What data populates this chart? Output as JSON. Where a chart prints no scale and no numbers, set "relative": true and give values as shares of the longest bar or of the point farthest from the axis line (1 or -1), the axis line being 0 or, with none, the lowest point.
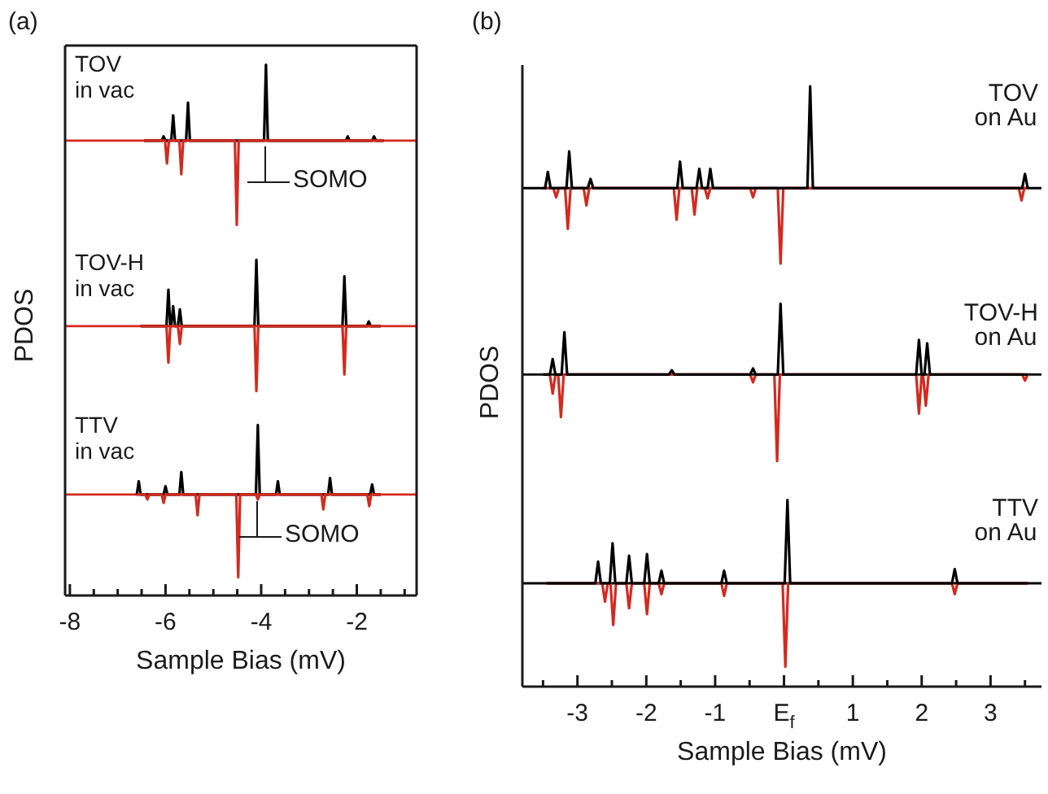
{
  "chart_data": [
    {
      "type": "line",
      "relative": true,
      "title": "(a)",
      "annotations": [
        "TOV\nin vac",
        "SOMO"
      ],
      "ref_lines": [
        {
          "axis": "y",
          "value": 0,
          "color": "#d42a1e"
        }
      ],
      "xlim": [
        -8.1,
        -0.75
      ],
      "tick_labels": false,
      "series": [
        {
          "color": "#000000",
          "x": [
            -6.45,
            -6.08,
            -6.04,
            -6.0,
            -5.88,
            -5.84,
            -5.8,
            -5.57,
            -5.53,
            -5.49,
            -3.94,
            -3.9,
            -3.86,
            -2.23,
            -2.19,
            -2.15,
            -1.68,
            -1.64,
            -1.6,
            -1.44
          ],
          "values": [
            0,
            0,
            0.05,
            0,
            0,
            0.3,
            0,
            0,
            0.45,
            0,
            0,
            0.9,
            0,
            0,
            0.05,
            0,
            0,
            0.05,
            0,
            0
          ]
        },
        {
          "color": "#d42a1e",
          "x": [
            -6.45,
            -6.01,
            -5.97,
            -5.93,
            -5.71,
            -5.67,
            -5.63,
            -4.55,
            -4.51,
            -4.47,
            -1.44
          ],
          "values": [
            0,
            0,
            -0.27,
            0,
            0,
            -0.4,
            0,
            0,
            -1,
            0,
            0
          ]
        }
      ]
    },
    {
      "type": "line",
      "relative": true,
      "ylabel": "PDOS",
      "annotations": [
        "TOV-H\nin vac"
      ],
      "ref_lines": [
        {
          "axis": "y",
          "value": 0,
          "color": "#d42a1e"
        }
      ],
      "xlim": [
        -8.1,
        -0.75
      ],
      "tick_labels": false,
      "series": [
        {
          "color": "#000000",
          "x": [
            -6.52,
            -5.98,
            -5.94,
            -5.9,
            -5.88,
            -5.84,
            -5.8,
            -5.74,
            -5.7,
            -5.66,
            -4.14,
            -4.1,
            -4.06,
            -2.3,
            -2.26,
            -2.22,
            -1.79,
            -1.75,
            -1.71,
            -1.5
          ],
          "values": [
            0,
            0,
            0.55,
            0,
            0,
            0.3,
            0,
            0,
            0.25,
            0,
            0,
            1,
            0,
            0,
            0.75,
            0,
            0,
            0.07,
            0,
            0
          ]
        },
        {
          "color": "#d42a1e",
          "x": [
            -6.52,
            -5.98,
            -5.94,
            -5.9,
            -5.74,
            -5.7,
            -5.66,
            -4.14,
            -4.1,
            -4.06,
            -2.3,
            -2.26,
            -2.22,
            -1.5
          ],
          "values": [
            0,
            0,
            -0.55,
            0,
            0,
            -0.27,
            0,
            0,
            -0.98,
            0,
            0,
            -0.73,
            0,
            0
          ]
        }
      ]
    },
    {
      "type": "line",
      "relative": true,
      "xlabel": "Sample Bias (mV)",
      "annotations": [
        "TTV\nin vac",
        "SOMO"
      ],
      "ref_lines": [
        {
          "axis": "y",
          "value": 0,
          "color": "#d42a1e"
        }
      ],
      "xlim": [
        -8.1,
        -0.75
      ],
      "xticks": [
        -8,
        {
          "value": -7.5,
          "label": null
        },
        {
          "value": -7,
          "label": null
        },
        {
          "value": -6.5,
          "label": null
        },
        -6,
        {
          "value": -5.5,
          "label": null
        },
        {
          "value": -5,
          "label": null
        },
        {
          "value": -4.5,
          "label": null
        },
        -4,
        {
          "value": -3.5,
          "label": null
        },
        {
          "value": -3,
          "label": null
        },
        {
          "value": -2.5,
          "label": null
        },
        -2,
        {
          "value": -1.5,
          "label": null
        },
        {
          "value": -1,
          "label": null
        }
      ],
      "series": [
        {
          "color": "#000000",
          "x": [
            -6.6,
            -6.56,
            -6.52,
            -6.04,
            -6.0,
            -5.96,
            -5.71,
            -5.67,
            -5.63,
            -4.11,
            -4.07,
            -4.03,
            -3.69,
            -3.65,
            -3.61,
            -2.6,
            -2.56,
            -2.52,
            -1.72,
            -1.68,
            -1.64,
            -1.5
          ],
          "values": [
            0,
            0.16,
            0,
            0,
            0.1,
            0,
            0,
            0.27,
            0,
            0,
            0.84,
            0,
            0,
            0.16,
            0,
            0,
            0.2,
            0,
            0,
            0.12,
            0,
            0
          ]
        },
        {
          "color": "#d42a1e",
          "x": [
            -6.6,
            -6.42,
            -6.38,
            -6.34,
            -6.08,
            -6.04,
            -6.0,
            -5.37,
            -5.33,
            -5.29,
            -4.52,
            -4.48,
            -4.44,
            -4.11,
            -4.07,
            -4.03,
            -2.74,
            -2.7,
            -2.66,
            -1.78,
            -1.74,
            -1.7,
            -1.5
          ],
          "values": [
            0,
            0,
            -0.06,
            0,
            0,
            -0.1,
            0,
            0,
            -0.25,
            0,
            0,
            -1,
            0,
            0,
            -0.06,
            0,
            0,
            -0.18,
            0,
            0,
            -0.14,
            0,
            0
          ]
        }
      ]
    },
    {
      "type": "line",
      "relative": true,
      "title": "(b)",
      "annotations": [
        "TOV\non Au"
      ],
      "ref_lines": [
        {
          "axis": "y",
          "value": 0,
          "color": "#000000"
        }
      ],
      "xlim": [
        -3.8,
        3.74
      ],
      "tick_labels": false,
      "series": [
        {
          "color": "#d42a1e",
          "x": [
            -3.45,
            -3.35,
            -3.31,
            -3.27,
            -3.18,
            -3.14,
            -3.1,
            -2.91,
            -2.87,
            -2.83,
            -1.6,
            -1.56,
            -1.52,
            -1.34,
            -1.3,
            -1.26,
            -1.15,
            -1.11,
            -1.07,
            -0.49,
            -0.45,
            -0.41,
            -0.09,
            -0.05,
            -0.01,
            3.41,
            3.45,
            3.49,
            3.52
          ],
          "values": [
            0,
            0,
            -0.09,
            0,
            0,
            -0.4,
            0,
            0,
            -0.17,
            0,
            0,
            -0.31,
            0,
            0,
            -0.26,
            0,
            0,
            -0.1,
            0,
            0,
            -0.09,
            0,
            0,
            -0.74,
            0,
            0,
            -0.12,
            0,
            0
          ]
        },
        {
          "color": "#000000",
          "x": [
            -3.5,
            -3.47,
            -3.43,
            -3.39,
            -3.16,
            -3.12,
            -3.08,
            -2.85,
            -2.81,
            -2.77,
            -1.55,
            -1.51,
            -1.47,
            -1.27,
            -1.23,
            -1.19,
            -1.11,
            -1.07,
            -1.03,
            0.34,
            0.38,
            0.42,
            3.46,
            3.5,
            3.54
          ],
          "values": [
            0,
            0,
            0.16,
            0,
            0,
            0.36,
            0,
            0,
            0.09,
            0,
            0,
            0.26,
            0,
            0,
            0.19,
            0,
            0,
            0.19,
            0,
            0,
            1,
            0,
            0,
            0.14,
            0
          ]
        }
      ]
    },
    {
      "type": "line",
      "relative": true,
      "ylabel": "PDOS",
      "annotations": [
        "TOV-H\non Au"
      ],
      "ref_lines": [
        {
          "axis": "y",
          "value": 0,
          "color": "#000000"
        }
      ],
      "xlim": [
        -3.8,
        3.74
      ],
      "tick_labels": false,
      "series": [
        {
          "color": "#d42a1e",
          "x": [
            -3.5,
            -3.4,
            -3.36,
            -3.32,
            -3.28,
            -3.24,
            -3.2,
            -0.49,
            -0.45,
            -0.41,
            -0.14,
            -0.1,
            -0.06,
            1.92,
            1.96,
            2.0,
            2.02,
            2.06,
            2.1,
            3.46,
            3.5,
            3.54
          ],
          "values": [
            0,
            0,
            -0.22,
            0,
            0,
            -0.49,
            0,
            0,
            -0.09,
            0,
            0,
            -1,
            0,
            0,
            -0.45,
            0,
            0,
            -0.36,
            0,
            0,
            -0.07,
            0
          ]
        },
        {
          "color": "#000000",
          "x": [
            -3.5,
            -3.4,
            -3.36,
            -3.32,
            -3.23,
            -3.19,
            -3.15,
            -1.67,
            -1.63,
            -1.59,
            -0.49,
            -0.45,
            -0.41,
            -0.09,
            -0.05,
            -0.01,
            1.92,
            1.96,
            2.0,
            2.04,
            2.08,
            2.12,
            3.54
          ],
          "values": [
            0,
            0,
            0.18,
            0,
            0,
            0.49,
            0,
            0,
            0.05,
            0,
            0,
            0.07,
            0,
            0,
            0.82,
            0,
            0,
            0.4,
            0,
            0,
            0.36,
            0,
            0
          ]
        }
      ]
    },
    {
      "type": "line",
      "relative": true,
      "xlabel": "Sample Bias (mV)",
      "annotations": [
        "TTV\non Au"
      ],
      "ref_lines": [
        {
          "axis": "y",
          "value": 0,
          "color": "#000000"
        }
      ],
      "xlim": [
        -3.8,
        3.74
      ],
      "xticks": [
        {
          "value": -3.5,
          "label": null
        },
        -3,
        {
          "value": -2.5,
          "label": null
        },
        -2,
        {
          "value": -1.5,
          "label": null
        },
        -1,
        {
          "value": -0.5,
          "label": null
        },
        {
          "value": 0,
          "label": "E$_{f}$"
        },
        {
          "value": 0.5,
          "label": null
        },
        1,
        {
          "value": 1.5,
          "label": null
        },
        2,
        {
          "value": 2.5,
          "label": null
        },
        3,
        {
          "value": 3.5,
          "label": null
        }
      ],
      "series": [
        {
          "color": "#d42a1e",
          "x": [
            -3.45,
            -2.64,
            -2.6,
            -2.56,
            -2.52,
            -2.48,
            -2.44,
            -2.29,
            -2.25,
            -2.21,
            -2.03,
            -1.99,
            -1.95,
            -1.82,
            -1.78,
            -1.74,
            -0.91,
            -0.87,
            -0.83,
            -0.02,
            0.02,
            0.06,
            2.44,
            2.48,
            2.52,
            3.54
          ],
          "values": [
            0,
            0,
            -0.22,
            0,
            0,
            -0.5,
            0,
            0,
            -0.3,
            0,
            0,
            -0.37,
            0,
            0,
            -0.13,
            0,
            0,
            -0.15,
            0,
            0,
            -1,
            0,
            0,
            -0.13,
            0,
            0
          ]
        },
        {
          "color": "#000000",
          "x": [
            -3.45,
            -2.74,
            -2.7,
            -2.66,
            -2.53,
            -2.49,
            -2.45,
            -2.29,
            -2.25,
            -2.21,
            -2.03,
            -1.99,
            -1.95,
            -1.82,
            -1.78,
            -1.74,
            -0.91,
            -0.87,
            -0.83,
            0.01,
            0.05,
            0.09,
            2.44,
            2.48,
            2.52,
            3.54
          ],
          "values": [
            0,
            0,
            0.26,
            0,
            0,
            0.48,
            0,
            0,
            0.33,
            0,
            0,
            0.35,
            0,
            0,
            0.15,
            0,
            0,
            0.15,
            0,
            0,
            1,
            0,
            0,
            0.17,
            0,
            0
          ]
        }
      ]
    }
  ]
}
